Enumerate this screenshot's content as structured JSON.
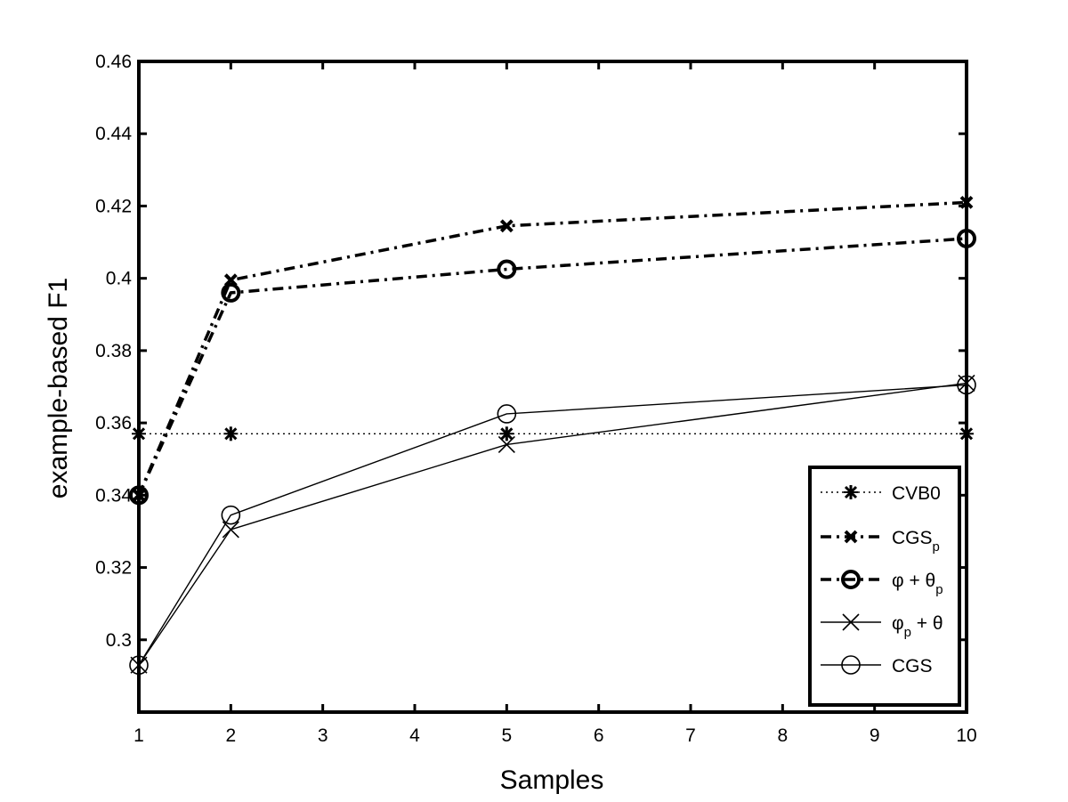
{
  "chart_data": {
    "type": "line",
    "title": "",
    "xlabel": "Samples",
    "ylabel": "example-based F1",
    "xlim": [
      1,
      10
    ],
    "ylim": [
      0.28,
      0.46
    ],
    "xticks": [
      "1",
      "2",
      "3",
      "4",
      "5",
      "6",
      "7",
      "8",
      "9",
      "10"
    ],
    "yticks": [
      "0.3",
      "0.32",
      "0.34",
      "0.36",
      "0.38",
      "0.4",
      "0.42",
      "0.44",
      "0.46"
    ],
    "x": [
      1,
      2,
      5,
      10
    ],
    "legend_position": "bottom-right",
    "series": [
      {
        "name": "CVB0",
        "label_main": "CVB0",
        "label_sub": "",
        "label_tail": "",
        "values": [
          0.357,
          0.357,
          0.357,
          0.357
        ],
        "line": "dotted",
        "marker": "asterisk",
        "bold": false
      },
      {
        "name": "CGSp",
        "label_main": "CGS",
        "label_sub": "p",
        "label_tail": "",
        "values": [
          0.34,
          0.3995,
          0.4145,
          0.421
        ],
        "line": "dashdot",
        "marker": "x",
        "bold": true
      },
      {
        "name": "φ + θp",
        "label_main": "φ + θ",
        "label_sub": "p",
        "label_tail": "",
        "values": [
          0.34,
          0.396,
          0.4025,
          0.411
        ],
        "line": "dashdot",
        "marker": "circle",
        "bold": true
      },
      {
        "name": "φp + θ",
        "label_main": "φ",
        "label_sub": "p",
        "label_tail": " + θ",
        "values": [
          0.293,
          0.3305,
          0.354,
          0.371
        ],
        "line": "solid",
        "marker": "x",
        "bold": false
      },
      {
        "name": "CGS",
        "label_main": "CGS",
        "label_sub": "",
        "label_tail": "",
        "values": [
          0.293,
          0.3345,
          0.3625,
          0.3705
        ],
        "line": "solid",
        "marker": "circle",
        "bold": false
      }
    ]
  }
}
